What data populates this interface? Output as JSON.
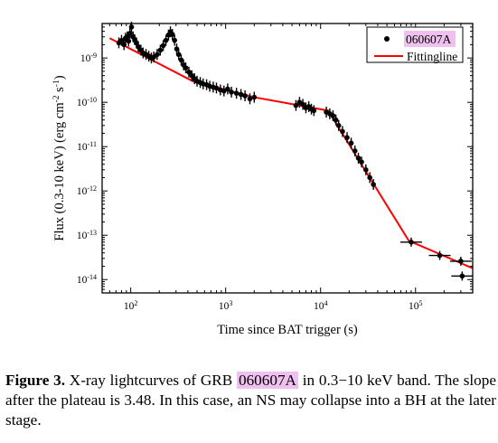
{
  "chart_data": {
    "type": "scatter",
    "xlabel": "Time since BAT trigger (s)",
    "ylabel": "Flux (0.3-10 keV) (erg cm",
    "ylabel_sup1": "-2",
    "ylabel_mid": " s",
    "ylabel_sup2": "-1",
    "ylabel_end": ")",
    "x_scale": "log",
    "y_scale": "log",
    "xlim": [
      50,
      400000
    ],
    "ylim": [
      5e-15,
      6e-09
    ],
    "x_ticks": [
      {
        "value": 100,
        "base": "10",
        "exp": "2"
      },
      {
        "value": 1000,
        "base": "10",
        "exp": "3"
      },
      {
        "value": 10000,
        "base": "10",
        "exp": "4"
      },
      {
        "value": 100000,
        "base": "10",
        "exp": "5"
      }
    ],
    "y_ticks": [
      {
        "value": 1e-09,
        "base": "10",
        "exp": "-9"
      },
      {
        "value": 1e-10,
        "base": "10",
        "exp": "-10"
      },
      {
        "value": 1e-11,
        "base": "10",
        "exp": "-11"
      },
      {
        "value": 1e-12,
        "base": "10",
        "exp": "-12"
      },
      {
        "value": 1e-13,
        "base": "10",
        "exp": "-13"
      },
      {
        "value": 1e-14,
        "base": "10",
        "exp": "-14"
      }
    ],
    "legend_position": "top-right",
    "series": [
      {
        "name": "060607A",
        "kind": "data",
        "color": "#000000",
        "points": [
          [
            75,
            2.2e-09
          ],
          [
            80,
            2.5e-09
          ],
          [
            85,
            2e-09
          ],
          [
            88,
            2.8e-09
          ],
          [
            92,
            3e-09
          ],
          [
            95,
            2.4e-09
          ],
          [
            98,
            3.6e-09
          ],
          [
            102,
            5e-09
          ],
          [
            106,
            3e-09
          ],
          [
            110,
            2.6e-09
          ],
          [
            115,
            2.2e-09
          ],
          [
            120,
            1.8e-09
          ],
          [
            128,
            1.5e-09
          ],
          [
            135,
            1.3e-09
          ],
          [
            145,
            1.2e-09
          ],
          [
            155,
            1.1e-09
          ],
          [
            165,
            1e-09
          ],
          [
            175,
            1.05e-09
          ],
          [
            190,
            1.2e-09
          ],
          [
            205,
            1.5e-09
          ],
          [
            220,
            1.9e-09
          ],
          [
            235,
            2.5e-09
          ],
          [
            250,
            3.3e-09
          ],
          [
            262,
            3.9e-09
          ],
          [
            275,
            3.4e-09
          ],
          [
            290,
            2.5e-09
          ],
          [
            305,
            1.6e-09
          ],
          [
            320,
            1.2e-09
          ],
          [
            340,
            9e-10
          ],
          [
            360,
            7e-10
          ],
          [
            380,
            6e-10
          ],
          [
            410,
            4.8e-10
          ],
          [
            440,
            4e-10
          ],
          [
            470,
            3.4e-10
          ],
          [
            500,
            3e-10
          ],
          [
            540,
            2.8e-10
          ],
          [
            580,
            2.6e-10
          ],
          [
            630,
            2.5e-10
          ],
          [
            680,
            2.3e-10
          ],
          [
            740,
            2.2e-10
          ],
          [
            800,
            2.1e-10
          ],
          [
            880,
            1.9e-10
          ],
          [
            960,
            1.8e-10
          ],
          [
            1050,
            2e-10
          ],
          [
            1150,
            1.7e-10
          ],
          [
            1300,
            1.6e-10
          ],
          [
            1450,
            1.5e-10
          ],
          [
            1600,
            1.4e-10
          ],
          [
            1800,
            1.2e-10
          ],
          [
            2000,
            1.3e-10
          ],
          [
            5500,
            8.5e-11
          ],
          [
            6000,
            1e-10
          ],
          [
            6500,
            9e-11
          ],
          [
            7000,
            7.5e-11
          ],
          [
            7500,
            8e-11
          ],
          [
            8000,
            7e-11
          ],
          [
            8500,
            6.5e-11
          ],
          [
            11500,
            6e-11
          ],
          [
            12500,
            5.5e-11
          ],
          [
            13500,
            5e-11
          ],
          [
            14500,
            4e-11
          ],
          [
            15500,
            3e-11
          ],
          [
            17000,
            2.2e-11
          ],
          [
            19000,
            1.6e-11
          ],
          [
            21000,
            1.2e-11
          ],
          [
            23000,
            8e-12
          ],
          [
            25000,
            5.5e-12
          ],
          [
            27000,
            4.5e-12
          ],
          [
            30000,
            3e-12
          ],
          [
            33000,
            2e-12
          ],
          [
            36000,
            1.4e-12
          ],
          [
            90000,
            7e-14
          ],
          [
            180000,
            3.5e-14
          ],
          [
            300000,
            2.6e-14
          ],
          [
            310000,
            1.2e-14
          ]
        ]
      },
      {
        "name": "Fittingline",
        "kind": "line",
        "color": "#ff0000",
        "points": [
          [
            60,
            2.8e-09
          ],
          [
            450,
            3e-10
          ],
          [
            2000,
            1.3e-10
          ],
          [
            12000,
            6.5e-11
          ],
          [
            85000,
            7.5e-14
          ],
          [
            400000,
            1.8e-14
          ]
        ]
      }
    ]
  },
  "caption": {
    "label": "Figure 3.",
    "text_before": " X-ray lightcurves of GRB ",
    "highlight": "060607A",
    "text_after": " in 0.3−10 keV band.  The slope after the plateau is 3.48.  In this case, an NS may collapse into a BH at the later stage."
  },
  "colors": {
    "highlight": "#efc0f0",
    "fit_line": "#ff0000",
    "data": "#000000"
  }
}
